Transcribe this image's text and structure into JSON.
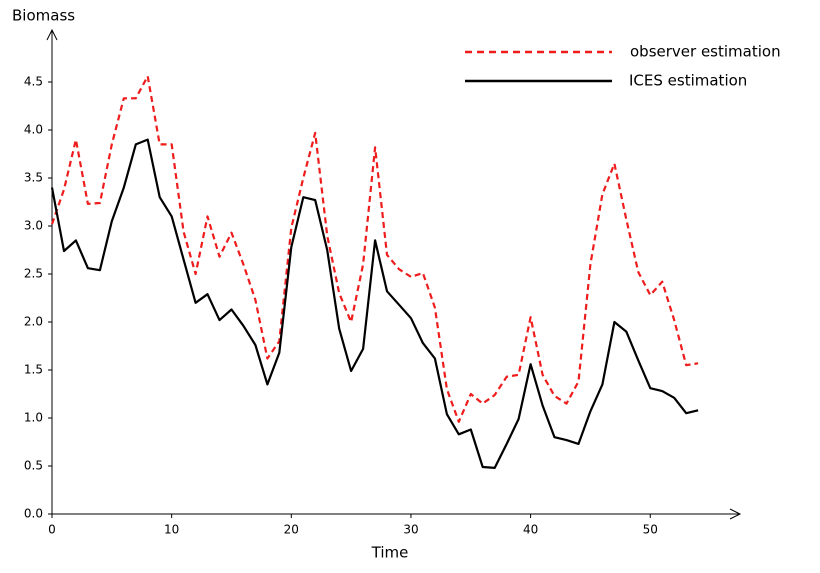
{
  "chart_data": {
    "type": "line",
    "y_label": "Biomass",
    "x_label": "Time",
    "x": [
      0,
      1,
      2,
      3,
      4,
      5,
      6,
      7,
      8,
      9,
      10,
      11,
      12,
      13,
      14,
      15,
      16,
      17,
      18,
      19,
      20,
      21,
      22,
      23,
      24,
      25,
      26,
      27,
      28,
      29,
      30,
      31,
      32,
      33,
      34,
      35,
      36,
      37,
      38,
      39,
      40,
      41,
      42,
      43,
      44,
      45,
      46,
      47,
      48,
      49,
      50,
      51,
      52,
      53,
      54
    ],
    "series": [
      {
        "name": "observer estimation",
        "color": "#ee1c1c",
        "dash": true,
        "values": [
          3.02,
          3.38,
          3.9,
          3.23,
          3.24,
          3.85,
          4.33,
          4.33,
          4.56,
          3.85,
          3.85,
          2.94,
          2.5,
          3.1,
          2.68,
          2.93,
          2.6,
          2.23,
          1.62,
          1.8,
          2.98,
          3.5,
          3.97,
          2.9,
          2.3,
          2.0,
          2.6,
          3.82,
          2.7,
          2.55,
          2.47,
          2.51,
          2.15,
          1.3,
          0.96,
          1.25,
          1.15,
          1.24,
          1.43,
          1.45,
          2.05,
          1.45,
          1.23,
          1.15,
          1.38,
          2.6,
          3.33,
          3.65,
          3.07,
          2.52,
          2.28,
          2.42,
          2.02,
          1.55,
          1.57
        ]
      },
      {
        "name": "ICES estimation",
        "color": "#000000",
        "dash": false,
        "values": [
          3.4,
          2.74,
          2.85,
          2.56,
          2.54,
          3.05,
          3.4,
          3.85,
          3.9,
          3.3,
          3.1,
          2.65,
          2.2,
          2.29,
          2.02,
          2.13,
          1.96,
          1.76,
          1.35,
          1.68,
          2.78,
          3.3,
          3.27,
          2.75,
          1.93,
          1.49,
          1.72,
          2.85,
          2.32,
          2.18,
          2.04,
          1.78,
          1.62,
          1.04,
          0.83,
          0.88,
          0.49,
          0.48,
          0.73,
          0.99,
          1.56,
          1.13,
          0.8,
          0.77,
          0.73,
          1.07,
          1.35,
          2.0,
          1.9,
          1.6,
          1.31,
          1.28,
          1.21,
          1.05,
          1.08
        ]
      }
    ],
    "xlim": [
      0,
      57.5
    ],
    "ylim": [
      0,
      5.05
    ],
    "xticks": [
      0,
      10,
      20,
      30,
      40,
      50
    ],
    "yticks": [
      {
        "value": 0,
        "label": "0.0"
      },
      0.5,
      {
        "value": 1,
        "label": "1.0"
      },
      1.5,
      {
        "value": 2,
        "label": "2.0"
      },
      2.5,
      {
        "value": 3,
        "label": "3.0"
      },
      3.5,
      {
        "value": 4,
        "label": "4.0"
      },
      4.5
    ],
    "grid": false,
    "legend": "upper right"
  }
}
